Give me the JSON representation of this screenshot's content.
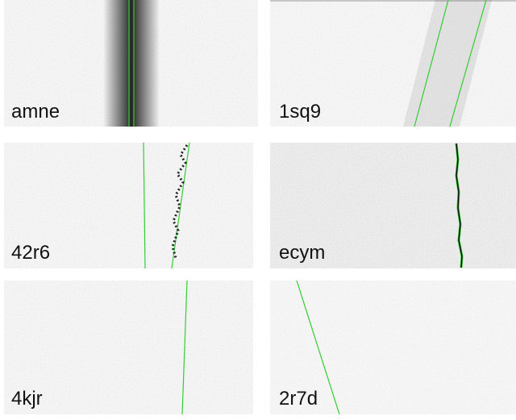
{
  "panels": [
    {
      "label": "amne"
    },
    {
      "label": "1sq9"
    },
    {
      "label": "42r6"
    },
    {
      "label": "ecym"
    },
    {
      "label": "4kjr"
    },
    {
      "label": "2r7d"
    }
  ]
}
